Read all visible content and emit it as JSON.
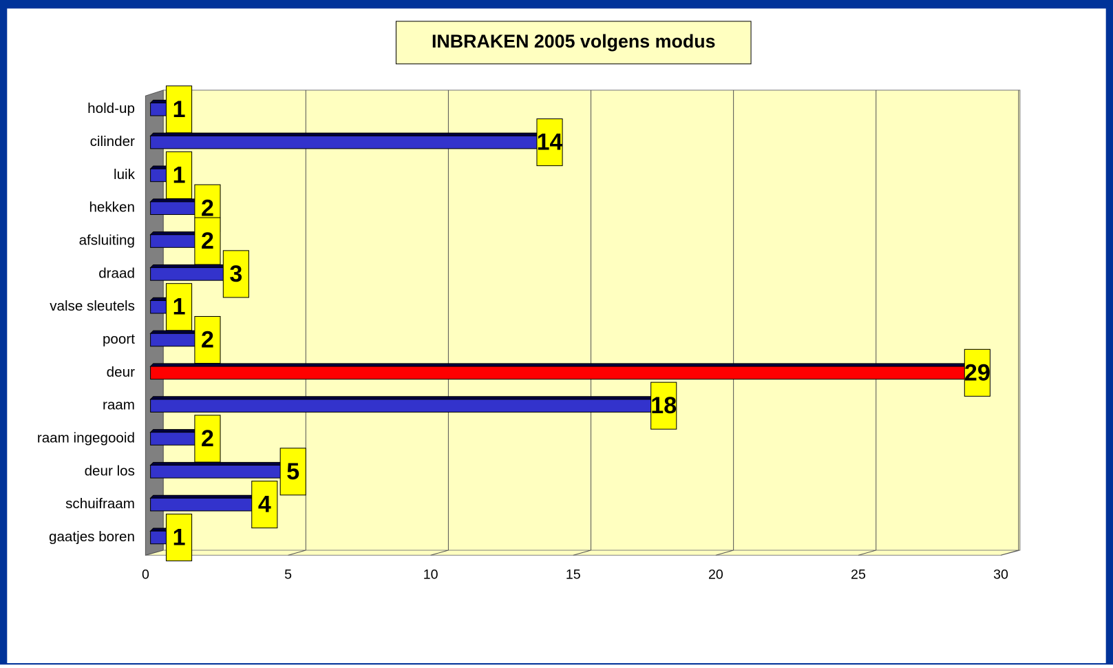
{
  "chart_data": {
    "type": "bar",
    "orientation": "horizontal",
    "title": "INBRAKEN 2005  volgens  modus",
    "categories": [
      "hold-up",
      "cilinder",
      "luik",
      "hekken",
      "afsluiting",
      "draad",
      "valse sleutels",
      "poort",
      "deur",
      "raam",
      "raam ingegooid",
      "deur los",
      "schuifraam",
      "gaatjes boren"
    ],
    "values": [
      1,
      14,
      1,
      2,
      2,
      3,
      1,
      2,
      29,
      18,
      2,
      5,
      4,
      1
    ],
    "colors": [
      "#3333cc",
      "#3333cc",
      "#3333cc",
      "#3333cc",
      "#3333cc",
      "#3333cc",
      "#3333cc",
      "#3333cc",
      "#ff0000",
      "#3333cc",
      "#3333cc",
      "#3333cc",
      "#3333cc",
      "#3333cc"
    ],
    "xlim": [
      0,
      30
    ],
    "xticks": [
      0,
      5,
      10,
      15,
      20,
      25,
      30
    ],
    "grid": true
  }
}
